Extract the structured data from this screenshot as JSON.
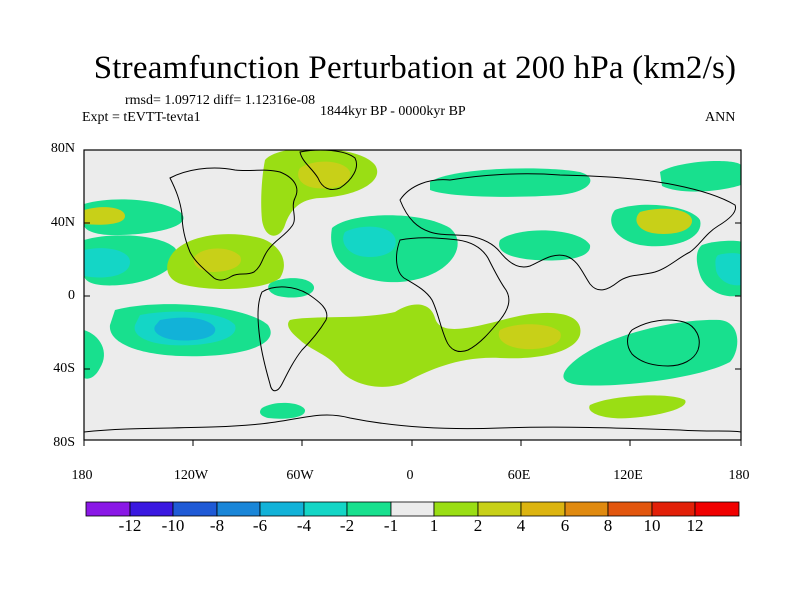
{
  "title": "Streamfunction Perturbation at 200 hPa (km2/s)",
  "stats": "rmsd= 1.09712 diff= 1.12316e-08",
  "expt": "Expt = tEVTT-tevta1",
  "period": "1844kyr BP - 0000kyr BP",
  "season": "ANN",
  "lat_labels": [
    "80N",
    "40N",
    "0",
    "40S",
    "80S"
  ],
  "lon_labels": [
    "180",
    "120W",
    "60W",
    "0",
    "60E",
    "120E",
    "180"
  ],
  "colorbar": {
    "labels": [
      "-12",
      "-10",
      "-8",
      "-6",
      "-4",
      "-2",
      "-1",
      "1",
      "2",
      "4",
      "6",
      "8",
      "10",
      "12"
    ],
    "colors": [
      "#8a18e6",
      "#3a18e0",
      "#1f5ad6",
      "#1a86d8",
      "#12b2d8",
      "#14d6c6",
      "#18e08e",
      "#ececec",
      "#9ade14",
      "#c8d018",
      "#dcb410",
      "#e08a10",
      "#e2560e",
      "#e22008",
      "#f00000"
    ]
  },
  "colors": {
    "background": "#ececec",
    "pos1": "#9ade14",
    "pos2": "#c8d018",
    "neg1": "#18e08e",
    "neg2": "#14d6c6",
    "neg3": "#12b2d8"
  }
}
